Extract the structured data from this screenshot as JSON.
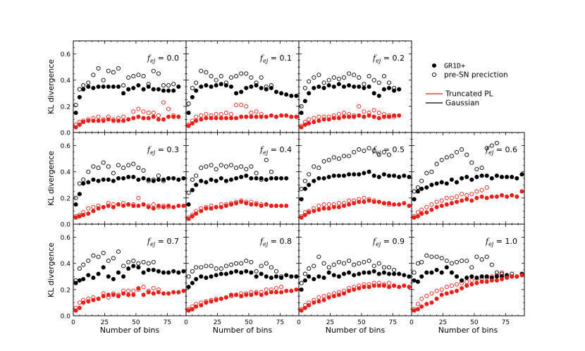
{
  "figure": {
    "ylabel": "KL divergence",
    "xlabel": "Number of bins",
    "legend": {
      "markers": [
        {
          "label": "GR1D+",
          "style": "filled"
        },
        {
          "label": "pre-SN preciction",
          "style": "open"
        }
      ],
      "lines": [
        {
          "label": "Truncated PL",
          "color": "#e8201a"
        },
        {
          "label": "Gaussian",
          "color": "#000000"
        }
      ]
    },
    "colors": {
      "pl": "#e8201a",
      "gauss": "#000000"
    }
  },
  "chart_data": {
    "type": "scatter",
    "xlim": [
      0,
      90
    ],
    "ylim": [
      0,
      0.7
    ],
    "xticks": [
      0,
      25,
      50,
      75
    ],
    "yticks": [
      0.0,
      0.2,
      0.4,
      0.6
    ],
    "x": [
      2,
      5,
      8,
      12,
      16,
      20,
      24,
      28,
      32,
      36,
      40,
      44,
      48,
      52,
      56,
      60,
      64,
      68,
      72,
      76,
      80,
      84,
      88
    ],
    "panels": [
      {
        "label": "0.0",
        "gauss_sim": [
          0.15,
          0.27,
          0.33,
          0.35,
          0.34,
          0.35,
          0.35,
          0.35,
          0.35,
          0.35,
          0.3,
          0.33,
          0.34,
          0.36,
          0.33,
          0.35,
          0.33,
          0.33,
          0.32,
          0.32,
          0.32,
          0.35,
          null
        ],
        "gauss_pre": [
          0.21,
          0.33,
          0.36,
          0.38,
          0.44,
          0.49,
          0.4,
          0.47,
          0.46,
          0.49,
          0.36,
          0.42,
          0.43,
          0.44,
          0.43,
          0.37,
          0.47,
          0.45,
          0.36,
          0.36,
          0.37,
          null,
          null
        ],
        "pl_sim": [
          0.04,
          0.06,
          0.08,
          0.09,
          0.09,
          0.09,
          0.09,
          0.1,
          0.09,
          0.09,
          0.09,
          0.1,
          0.11,
          0.12,
          0.11,
          0.11,
          0.12,
          0.1,
          0.1,
          0.12,
          0.12,
          0.12,
          null
        ],
        "pl_pre": [
          0.06,
          0.08,
          0.09,
          0.1,
          0.11,
          0.12,
          0.1,
          0.12,
          0.1,
          0.11,
          0.12,
          0.1,
          0.16,
          0.18,
          0.16,
          0.15,
          0.15,
          0.13,
          0.23,
          0.18,
          0.13,
          null,
          null
        ]
      },
      {
        "label": "0.1",
        "gauss_sim": [
          0.15,
          0.27,
          0.32,
          0.35,
          0.36,
          0.35,
          0.36,
          0.37,
          0.36,
          0.35,
          0.3,
          0.31,
          0.34,
          0.35,
          0.36,
          0.34,
          0.33,
          0.34,
          0.31,
          0.3,
          0.29,
          0.28,
          0.28
        ],
        "gauss_pre": [
          0.22,
          0.34,
          0.38,
          0.47,
          0.46,
          0.43,
          0.4,
          0.43,
          0.38,
          0.42,
          0.43,
          0.45,
          0.45,
          0.42,
          0.38,
          0.42,
          0.35,
          0.36,
          null,
          null,
          null,
          null,
          null
        ],
        "pl_sim": [
          0.05,
          0.07,
          0.09,
          0.1,
          0.11,
          0.11,
          0.11,
          0.11,
          0.11,
          0.11,
          0.11,
          0.12,
          0.12,
          0.12,
          0.12,
          0.12,
          0.12,
          0.13,
          0.12,
          0.13,
          0.13,
          0.12,
          0.12
        ],
        "pl_pre": [
          0.06,
          0.09,
          0.12,
          0.13,
          0.14,
          0.13,
          0.14,
          0.14,
          0.15,
          0.14,
          0.21,
          0.21,
          0.2,
          0.15,
          0.16,
          0.14,
          null,
          null,
          null,
          null,
          null,
          null,
          null
        ]
      },
      {
        "label": "0.2",
        "gauss_sim": [
          0.15,
          0.24,
          0.3,
          0.34,
          0.35,
          0.34,
          0.36,
          0.35,
          0.37,
          0.35,
          0.36,
          0.35,
          0.35,
          0.34,
          0.35,
          0.3,
          0.28,
          0.33,
          0.34,
          0.32,
          0.33,
          null,
          null
        ],
        "gauss_pre": [
          0.2,
          0.34,
          0.39,
          0.42,
          0.44,
          0.38,
          0.4,
          0.42,
          0.41,
          0.42,
          0.45,
          0.44,
          0.42,
          0.37,
          0.43,
          0.4,
          0.38,
          0.43,
          0.38,
          0.34,
          null,
          null,
          null
        ],
        "pl_sim": [
          0.04,
          0.06,
          0.07,
          0.08,
          0.09,
          0.1,
          0.1,
          0.11,
          0.11,
          0.12,
          0.12,
          0.12,
          0.13,
          0.12,
          0.13,
          0.12,
          0.11,
          0.12,
          0.12,
          0.13,
          0.13,
          null,
          null
        ],
        "pl_pre": [
          0.05,
          0.08,
          0.1,
          0.11,
          0.12,
          0.12,
          0.12,
          0.13,
          0.14,
          0.15,
          0.14,
          0.13,
          0.2,
          0.16,
          0.15,
          0.17,
          0.15,
          0.14,
          0.13,
          0.12,
          null,
          null,
          null
        ]
      },
      null,
      {
        "label": "0.3",
        "gauss_sim": [
          0.15,
          0.23,
          0.31,
          0.32,
          0.34,
          0.33,
          0.34,
          0.34,
          0.33,
          0.35,
          0.35,
          0.36,
          0.36,
          0.34,
          0.35,
          0.34,
          0.33,
          0.34,
          0.34,
          0.35,
          0.35,
          0.34,
          0.35
        ],
        "gauss_pre": [
          0.2,
          0.31,
          0.34,
          0.4,
          0.44,
          0.43,
          0.47,
          0.44,
          0.39,
          0.45,
          0.43,
          0.45,
          0.46,
          0.43,
          0.41,
          0.33,
          0.34,
          0.37,
          0.33,
          0.35,
          null,
          null,
          null
        ],
        "pl_sim": [
          0.05,
          0.06,
          0.07,
          0.08,
          0.1,
          0.12,
          0.13,
          0.14,
          0.13,
          0.15,
          0.14,
          0.15,
          0.14,
          0.14,
          0.15,
          0.13,
          0.12,
          0.14,
          0.13,
          0.14,
          0.13,
          0.14,
          0.14
        ],
        "pl_pre": [
          0.06,
          0.07,
          0.09,
          0.12,
          0.13,
          0.14,
          0.13,
          0.16,
          0.15,
          0.15,
          0.16,
          0.15,
          0.15,
          0.2,
          0.15,
          0.14,
          0.15,
          0.13,
          0.14,
          0.13,
          null,
          null,
          null
        ]
      },
      {
        "label": "0.4",
        "gauss_sim": [
          0.15,
          0.26,
          0.3,
          0.33,
          0.32,
          0.34,
          0.33,
          0.35,
          0.33,
          0.34,
          0.35,
          0.36,
          0.37,
          0.35,
          0.35,
          0.35,
          0.34,
          0.35,
          0.35,
          0.35,
          0.35,
          null,
          null
        ],
        "gauss_pre": [
          0.24,
          0.34,
          0.37,
          0.43,
          0.44,
          0.45,
          0.42,
          0.45,
          0.44,
          0.45,
          0.43,
          0.44,
          0.42,
          0.44,
          0.39,
          0.34,
          0.49,
          0.4,
          0.35,
          null,
          null,
          null,
          null
        ],
        "pl_sim": [
          0.04,
          0.06,
          0.08,
          0.1,
          0.12,
          0.12,
          0.13,
          0.13,
          0.14,
          0.15,
          0.16,
          0.17,
          0.16,
          0.15,
          0.15,
          0.14,
          0.15,
          0.14,
          0.14,
          0.14,
          0.14,
          null,
          null
        ],
        "pl_pre": [
          0.05,
          0.07,
          0.1,
          0.12,
          0.13,
          0.14,
          0.13,
          0.15,
          0.15,
          0.16,
          0.17,
          0.18,
          0.17,
          0.17,
          0.16,
          0.15,
          0.15,
          0.14,
          0.14,
          null,
          null,
          null,
          null
        ]
      },
      {
        "label": "0.5",
        "gauss_sim": [
          0.19,
          0.27,
          0.3,
          0.33,
          0.35,
          0.35,
          0.36,
          0.37,
          0.37,
          0.37,
          0.38,
          0.38,
          0.38,
          0.39,
          0.4,
          0.37,
          0.36,
          0.38,
          0.37,
          0.37,
          0.36,
          0.37,
          0.36
        ],
        "gauss_pre": [
          0.27,
          0.33,
          0.38,
          0.44,
          0.43,
          0.48,
          0.49,
          0.51,
          0.5,
          0.52,
          0.52,
          0.55,
          0.57,
          0.56,
          0.58,
          0.56,
          0.53,
          0.55,
          0.53,
          null,
          null,
          null,
          null
        ],
        "pl_sim": [
          0.05,
          0.07,
          0.09,
          0.1,
          0.11,
          0.12,
          0.12,
          0.13,
          0.13,
          0.14,
          0.15,
          0.16,
          0.17,
          0.17,
          0.18,
          0.17,
          0.17,
          0.16,
          0.16,
          0.15,
          0.15,
          0.16,
          0.14
        ],
        "pl_pre": [
          0.06,
          0.09,
          0.1,
          0.12,
          0.14,
          0.15,
          0.15,
          0.15,
          0.16,
          0.16,
          0.18,
          0.18,
          0.19,
          0.2,
          0.19,
          0.18,
          0.17,
          0.16,
          0.15,
          null,
          null,
          null,
          null
        ]
      },
      {
        "label": "0.6",
        "gauss_sim": [
          0.19,
          0.25,
          0.27,
          0.28,
          0.3,
          0.31,
          0.32,
          0.31,
          0.34,
          0.32,
          0.35,
          0.36,
          0.34,
          0.36,
          0.37,
          0.37,
          0.35,
          0.37,
          0.36,
          0.36,
          0.36,
          0.35,
          0.38
        ],
        "gauss_pre": [
          0.25,
          0.28,
          0.33,
          0.39,
          0.4,
          0.46,
          0.49,
          0.51,
          0.52,
          0.55,
          0.57,
          0.53,
          0.47,
          0.42,
          0.43,
          0.58,
          0.6,
          0.62,
          null,
          null,
          null,
          null,
          null
        ],
        "pl_sim": [
          0.05,
          0.06,
          0.08,
          0.09,
          0.11,
          0.13,
          0.14,
          0.15,
          0.16,
          0.17,
          0.18,
          0.19,
          0.18,
          0.2,
          0.21,
          0.2,
          0.21,
          0.21,
          0.22,
          0.21,
          0.22,
          0.21,
          0.25
        ],
        "pl_pre": [
          0.06,
          0.09,
          0.11,
          0.13,
          0.15,
          0.17,
          0.18,
          0.2,
          0.2,
          0.21,
          0.23,
          0.22,
          0.23,
          0.25,
          0.26,
          0.28,
          null,
          null,
          null,
          null,
          null,
          null,
          null
        ]
      },
      {
        "label": "0.7",
        "gauss_sim": [
          0.25,
          0.27,
          0.28,
          0.31,
          0.29,
          0.32,
          0.37,
          0.3,
          0.28,
          0.33,
          0.3,
          0.36,
          0.38,
          0.37,
          0.33,
          0.35,
          0.35,
          0.34,
          0.33,
          0.33,
          0.34,
          0.33,
          0.34
        ],
        "gauss_pre": [
          0.27,
          0.36,
          0.39,
          0.42,
          0.46,
          0.45,
          0.48,
          0.42,
          0.44,
          0.49,
          0.38,
          0.41,
          0.42,
          0.4,
          0.41,
          0.4,
          0.41,
          0.34,
          null,
          null,
          null,
          null,
          null
        ],
        "pl_sim": [
          0.04,
          0.06,
          0.1,
          0.11,
          0.12,
          0.13,
          0.15,
          0.16,
          0.16,
          0.15,
          0.17,
          0.16,
          0.16,
          0.21,
          0.16,
          0.18,
          0.17,
          0.18,
          0.17,
          0.17,
          0.18,
          0.18,
          0.19
        ],
        "pl_pre": [
          0.06,
          0.1,
          0.12,
          0.13,
          0.14,
          0.13,
          0.17,
          0.14,
          0.17,
          0.16,
          0.19,
          0.19,
          0.19,
          0.2,
          0.22,
          0.19,
          0.21,
          0.2,
          null,
          null,
          null,
          null,
          null
        ]
      },
      {
        "label": "0.8",
        "gauss_sim": [
          0.22,
          0.25,
          0.28,
          0.3,
          0.29,
          0.3,
          0.31,
          0.32,
          0.32,
          0.33,
          0.34,
          0.33,
          0.34,
          0.33,
          0.3,
          0.32,
          0.3,
          0.29,
          0.3,
          0.29,
          0.31,
          0.3,
          0.3
        ],
        "gauss_pre": [
          0.3,
          0.34,
          0.37,
          0.37,
          0.38,
          0.38,
          0.36,
          0.36,
          0.38,
          0.39,
          0.4,
          0.4,
          0.42,
          0.41,
          0.34,
          0.38,
          0.4,
          0.37,
          0.34,
          0.3,
          null,
          null,
          null
        ],
        "pl_sim": [
          0.04,
          0.05,
          0.07,
          0.08,
          0.1,
          0.11,
          0.12,
          0.13,
          0.14,
          0.16,
          0.16,
          0.15,
          0.16,
          0.16,
          0.17,
          0.16,
          0.17,
          0.18,
          0.18,
          0.18,
          0.19,
          0.19,
          0.2
        ],
        "pl_pre": [
          0.05,
          0.07,
          0.09,
          0.1,
          0.11,
          0.12,
          0.13,
          0.13,
          0.14,
          0.15,
          0.16,
          0.17,
          0.17,
          0.18,
          0.18,
          0.18,
          0.2,
          0.2,
          0.21,
          0.22,
          null,
          null,
          null
        ]
      },
      {
        "label": "0.9",
        "gauss_sim": [
          0.2,
          0.27,
          0.3,
          0.28,
          0.3,
          0.29,
          0.33,
          0.31,
          0.3,
          0.32,
          0.33,
          0.31,
          0.32,
          0.33,
          0.33,
          0.34,
          0.32,
          0.33,
          0.32,
          0.32,
          0.32,
          0.31,
          0.3
        ],
        "gauss_pre": [
          0.25,
          0.32,
          0.36,
          0.38,
          0.45,
          0.4,
          0.37,
          0.39,
          0.41,
          0.4,
          0.42,
          0.39,
          0.4,
          0.41,
          0.42,
          0.38,
          0.4,
          0.37,
          0.37,
          0.35,
          null,
          null,
          null
        ],
        "pl_sim": [
          0.04,
          0.06,
          0.08,
          0.1,
          0.11,
          0.12,
          0.14,
          0.15,
          0.16,
          0.17,
          0.19,
          0.2,
          0.21,
          0.22,
          0.22,
          0.23,
          0.23,
          0.23,
          0.22,
          0.23,
          0.22,
          0.23,
          0.22
        ],
        "pl_pre": [
          0.05,
          0.08,
          0.1,
          0.12,
          0.14,
          0.15,
          0.16,
          0.17,
          0.18,
          0.19,
          0.21,
          0.22,
          0.23,
          0.24,
          0.24,
          0.25,
          0.25,
          0.24,
          0.25,
          0.23,
          null,
          null,
          null
        ]
      },
      {
        "label": "1.0",
        "gauss_sim": [
          0.27,
          0.26,
          0.3,
          0.33,
          0.33,
          0.35,
          0.33,
          0.37,
          0.33,
          0.3,
          0.27,
          0.29,
          0.3,
          0.29,
          0.3,
          0.3,
          0.29,
          0.3,
          0.3,
          0.31,
          0.3,
          0.3,
          0.32
        ],
        "gauss_pre": [
          0.33,
          0.4,
          0.41,
          0.46,
          0.45,
          0.45,
          0.44,
          0.42,
          0.4,
          0.41,
          0.42,
          0.42,
          0.37,
          0.45,
          0.43,
          0.45,
          0.39,
          0.33,
          0.32,
          0.3,
          0.32,
          null,
          null
        ],
        "pl_sim": [
          0.04,
          0.05,
          0.07,
          0.09,
          0.1,
          0.13,
          0.16,
          0.17,
          0.18,
          0.19,
          0.21,
          0.23,
          0.24,
          0.25,
          0.26,
          0.26,
          0.27,
          0.27,
          0.28,
          0.29,
          0.3,
          0.3,
          0.31
        ],
        "pl_pre": [
          0.05,
          0.09,
          0.13,
          0.15,
          0.17,
          0.19,
          0.2,
          0.22,
          0.23,
          0.24,
          0.25,
          0.26,
          0.27,
          0.28,
          0.28,
          0.29,
          0.3,
          0.31,
          0.33,
          0.3,
          0.3,
          null,
          null
        ]
      }
    ]
  }
}
